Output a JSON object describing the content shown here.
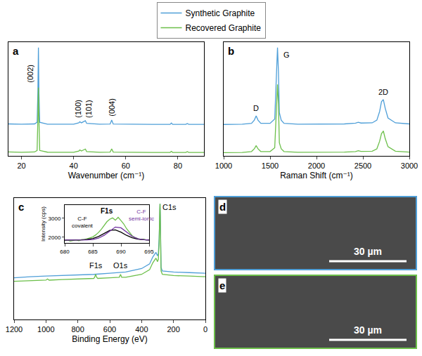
{
  "chart_data": [
    {
      "panel": "a",
      "type": "line",
      "x_label": "Wavenumber (cm⁻¹)",
      "xlim": [
        15,
        90
      ],
      "xticks": [
        20,
        40,
        60,
        80
      ],
      "ylim": [
        0,
        105
      ],
      "tick_labels": "x",
      "grid": false,
      "legend": "top",
      "series": [
        {
          "name": "Synthetic Graphite",
          "color": "#4f9fd8",
          "x": [
            15,
            20,
            25,
            26.0,
            26.3,
            26.5,
            26.7,
            27.0,
            30,
            40,
            42.0,
            42.4,
            43.0,
            44.0,
            44.5,
            45.0,
            50,
            54.0,
            54.6,
            55.2,
            60,
            70,
            77.0,
            77.5,
            78.0,
            83.0,
            83.6,
            84.2,
            90
          ],
          "values": [
            29.5,
            29.2,
            29.5,
            31,
            60,
            100,
            58,
            31,
            29.3,
            29.2,
            30.5,
            31.5,
            30.5,
            31.8,
            32.5,
            30,
            29.2,
            29.4,
            33,
            29.4,
            29.2,
            29.1,
            29.1,
            30.3,
            29.1,
            29.1,
            29.9,
            29.1,
            29.1
          ]
        },
        {
          "name": "Recovered Graphite",
          "color": "#6cbf4a",
          "x": [
            15,
            20,
            25,
            26.0,
            26.3,
            26.5,
            26.7,
            27.0,
            30,
            40,
            42.0,
            42.4,
            43.0,
            44.0,
            44.5,
            45.0,
            50,
            54.0,
            54.6,
            55.2,
            60,
            70,
            77.0,
            77.5,
            78.0,
            83.0,
            83.6,
            84.2,
            90
          ],
          "values": [
            3.6,
            3.3,
            3.6,
            5,
            35,
            63,
            33,
            5,
            3.4,
            3.3,
            4.5,
            5.5,
            4.5,
            5.8,
            6.3,
            4,
            3.3,
            3.5,
            6.5,
            3.5,
            3.3,
            3.2,
            3.2,
            4.2,
            3.2,
            3.2,
            3.9,
            3.2,
            3.2
          ]
        }
      ],
      "annotations": [
        {
          "text": "(002)",
          "x": 23.5,
          "y": 66
        },
        {
          "text": "(100)",
          "x": 41.5,
          "y": 34
        },
        {
          "text": "(101)",
          "x": 45.6,
          "y": 34
        },
        {
          "text": "(004)",
          "x": 54.6,
          "y": 35
        }
      ]
    },
    {
      "panel": "b",
      "type": "line",
      "x_label": "Raman Shift (cm⁻¹)",
      "xlim": [
        1000,
        3000
      ],
      "xticks": [
        1000,
        1500,
        2000,
        2500,
        3000
      ],
      "ylim": [
        0,
        105
      ],
      "tick_labels": "x",
      "grid": false,
      "series": [
        {
          "name": "Synthetic Graphite",
          "color": "#4f9fd8",
          "x": [
            1000,
            1200,
            1300,
            1330,
            1350,
            1370,
            1400,
            1500,
            1550,
            1570,
            1580,
            1590,
            1600,
            1620,
            1650,
            1800,
            2000,
            2300,
            2420,
            2450,
            2480,
            2600,
            2650,
            2680,
            2700,
            2720,
            2740,
            2770,
            2850,
            3000
          ],
          "values": [
            29,
            29.2,
            30,
            33,
            37,
            33,
            30,
            30,
            34,
            75,
            100,
            78,
            40,
            33,
            30,
            29.3,
            29.2,
            29.5,
            30.2,
            31,
            30.3,
            30.5,
            33,
            41,
            50,
            52,
            44,
            35,
            30.5,
            29.5
          ]
        },
        {
          "name": "Recovered Graphite",
          "color": "#6cbf4a",
          "x": [
            1000,
            1200,
            1300,
            1330,
            1350,
            1370,
            1400,
            1500,
            1550,
            1570,
            1580,
            1590,
            1600,
            1620,
            1650,
            1800,
            2000,
            2300,
            2420,
            2450,
            2480,
            2600,
            2650,
            2680,
            2700,
            2720,
            2740,
            2770,
            2850,
            3000
          ],
          "values": [
            3,
            3.2,
            4,
            6.5,
            9.5,
            6.5,
            4,
            4,
            7.5,
            45,
            66,
            48,
            12,
            6.5,
            4,
            3.3,
            3.2,
            3.5,
            4,
            4.8,
            4.1,
            4.3,
            6.5,
            13.5,
            20.5,
            23,
            16,
            8.5,
            4.3,
            3.5
          ]
        }
      ],
      "annotations": [
        {
          "text": "D",
          "x": 1350,
          "y": 39
        },
        {
          "text": "G",
          "x": 1680,
          "y": 88
        },
        {
          "text": "2D",
          "x": 2720,
          "y": 54
        }
      ]
    },
    {
      "panel": "c",
      "type": "line",
      "x_label": "Binding Energy (eV)",
      "xlim": [
        1200,
        0
      ],
      "xticks": [
        1200,
        1000,
        800,
        600,
        400,
        200,
        0
      ],
      "ylim": [
        0,
        105
      ],
      "tick_labels": "x",
      "grid": false,
      "series": [
        {
          "name": "Synthetic Graphite",
          "color": "#4f9fd8",
          "x": [
            1200,
            1100,
            1000,
            900,
            800,
            700,
            600,
            500,
            400,
            350,
            330,
            310,
            300,
            295,
            290,
            286,
            284.5,
            283,
            281,
            278,
            270,
            200,
            100,
            0
          ],
          "values": [
            36,
            37,
            37.5,
            38,
            38.5,
            39,
            40,
            41,
            44,
            48,
            54,
            58,
            55,
            57,
            70,
            95,
            100,
            92,
            60,
            45,
            42,
            41,
            40.5,
            40
          ]
        },
        {
          "name": "Recovered Graphite",
          "color": "#6cbf4a",
          "x": [
            1200,
            1100,
            1000,
            990,
            980,
            900,
            800,
            700,
            695,
            688,
            682,
            675,
            600,
            540,
            532,
            525,
            500,
            400,
            350,
            330,
            310,
            300,
            295,
            290,
            286,
            284.5,
            283,
            281,
            278,
            270,
            200,
            100,
            0
          ],
          "values": [
            33,
            33.5,
            34,
            35,
            34,
            34.5,
            35,
            35.5,
            36.5,
            39,
            36.5,
            35.5,
            36,
            36.5,
            39,
            36.5,
            36.5,
            39,
            43,
            49,
            53,
            50,
            52,
            66,
            95,
            100,
            90,
            56,
            42,
            39,
            38,
            37.5,
            37
          ]
        }
      ],
      "annotations": [
        {
          "text": "C1s",
          "x": 225,
          "y": 92
        },
        {
          "text": "F1s",
          "x": 688,
          "y": 42
        },
        {
          "text": "O1s",
          "x": 532,
          "y": 42
        }
      ],
      "inset": {
        "type": "line",
        "title": "F1s",
        "y_label": "Intensity (cps)",
        "xlim": [
          680,
          695
        ],
        "xticks": [
          680,
          685,
          690,
          695
        ],
        "ylim": [
          1700,
          3700
        ],
        "yticks": [
          2000,
          3000
        ],
        "grid": false,
        "series": [
          {
            "color": "#6cbf4a",
            "x": [
              680,
              680.5,
              681,
              681.5,
              682,
              682.5,
              683,
              683.5,
              684,
              684.5,
              685,
              685.5,
              686,
              686.5,
              687,
              687.5,
              688,
              688.5,
              689,
              689.5,
              690,
              690.5,
              691,
              691.5,
              692,
              692.5,
              693,
              693.5,
              694,
              694.5,
              695
            ],
            "values": [
              1820,
              1850,
              1800,
              1830,
              1860,
              1820,
              1880,
              1870,
              1920,
              1960,
              2020,
              2120,
              2250,
              2420,
              2600,
              2820,
              2950,
              3020,
              2900,
              3050,
              2880,
              2700,
              2450,
              2250,
              2080,
              1980,
              1920,
              1880,
              1900,
              1850,
              1870
            ]
          },
          {
            "color": "#000000",
            "x": [
              680,
              681,
              682,
              683,
              684,
              685,
              686,
              687,
              688,
              689,
              690,
              691,
              692,
              693,
              694,
              695
            ],
            "values": [
              1850,
              1850,
              1852,
              1860,
              1885,
              1940,
              2040,
              2190,
              2360,
              2390,
              2270,
              2100,
              1970,
              1900,
              1865,
              1853
            ]
          },
          {
            "color": "#7030a0",
            "x": [
              680,
              681,
              682,
              683,
              684,
              685,
              686,
              687,
              688,
              689,
              690,
              691,
              692,
              693,
              694,
              695
            ],
            "values": [
              1850,
              1850,
              1851,
              1853,
              1860,
              1880,
              1950,
              2100,
              2330,
              2540,
              2500,
              2280,
              2050,
              1920,
              1870,
              1855
            ]
          }
        ],
        "annotations": [
          {
            "text": "C-F covalent",
            "x": 683.2,
            "y": 2380,
            "color": "#000000"
          },
          {
            "text": "C-F semi-ionic",
            "x": 693.6,
            "y": 2730,
            "color": "#7030a0"
          }
        ]
      }
    }
  ],
  "images": [
    {
      "panel": "d",
      "border_color": "#4f9fd8",
      "scale_bar": "30 µm"
    },
    {
      "panel": "e",
      "border_color": "#6cbf4a",
      "scale_bar": "30 µm"
    }
  ]
}
